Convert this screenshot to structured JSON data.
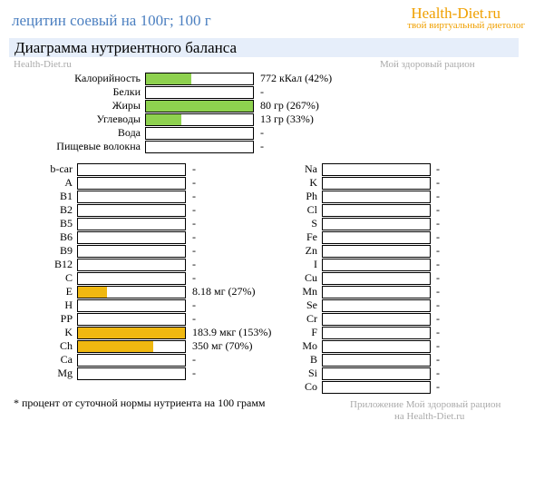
{
  "title": "лецитин соевый на 100г; 100 г",
  "brand": {
    "name": "Health-Diet.ru",
    "tagline": "твой виртуальный диетолог"
  },
  "header": "Диаграмма нутриентного баланса",
  "watermark": {
    "top_left": "Health-Diet.ru",
    "top_right": "Мой здоровый рацион",
    "bottom_line1": "Приложение Мой здоровый рацион",
    "bottom_line2": "на Health-Diet.ru"
  },
  "footnote": "* процент от суточной нормы нутриента на 100 грамм",
  "colors": {
    "macro": "#8ed14f",
    "micro": "#f0b810",
    "title": "#4b7fc0",
    "brand": "#f0a000"
  },
  "chart_data": [
    {
      "type": "bar",
      "name": "macronutrients",
      "xlim": [
        0,
        100
      ],
      "categories": [
        "Калорийность",
        "Белки",
        "Жиры",
        "Углеводы",
        "Вода",
        "Пищевые волокна"
      ],
      "values": [
        42,
        null,
        100,
        33,
        null,
        null
      ],
      "labels": [
        "772 кКал (42%)",
        "-",
        "80 гр (267%)",
        "13 гр (33%)",
        "-",
        "-"
      ]
    },
    {
      "type": "bar",
      "name": "vitamins",
      "xlim": [
        0,
        100
      ],
      "categories": [
        "b-car",
        "A",
        "B1",
        "B2",
        "B5",
        "B6",
        "B9",
        "B12",
        "C",
        "E",
        "H",
        "PP",
        "K",
        "Ch",
        "Ca",
        "Mg"
      ],
      "values": [
        null,
        null,
        null,
        null,
        null,
        null,
        null,
        null,
        null,
        27,
        null,
        null,
        100,
        70,
        null,
        null
      ],
      "labels": [
        "-",
        "-",
        "-",
        "-",
        "-",
        "-",
        "-",
        "-",
        "-",
        "8.18 мг (27%)",
        "-",
        "-",
        "183.9 мкг (153%)",
        "350 мг (70%)",
        "-",
        "-"
      ]
    },
    {
      "type": "bar",
      "name": "minerals",
      "xlim": [
        0,
        100
      ],
      "categories": [
        "Na",
        "K",
        "Ph",
        "Cl",
        "S",
        "Fe",
        "Zn",
        "I",
        "Cu",
        "Mn",
        "Se",
        "Cr",
        "F",
        "Mo",
        "B",
        "Si",
        "Co"
      ],
      "values": [
        null,
        null,
        null,
        null,
        null,
        null,
        null,
        null,
        null,
        null,
        null,
        null,
        null,
        null,
        null,
        null,
        null
      ],
      "labels": [
        "-",
        "-",
        "-",
        "-",
        "-",
        "-",
        "-",
        "-",
        "-",
        "-",
        "-",
        "-",
        "-",
        "-",
        "-",
        "-",
        "-"
      ]
    }
  ]
}
